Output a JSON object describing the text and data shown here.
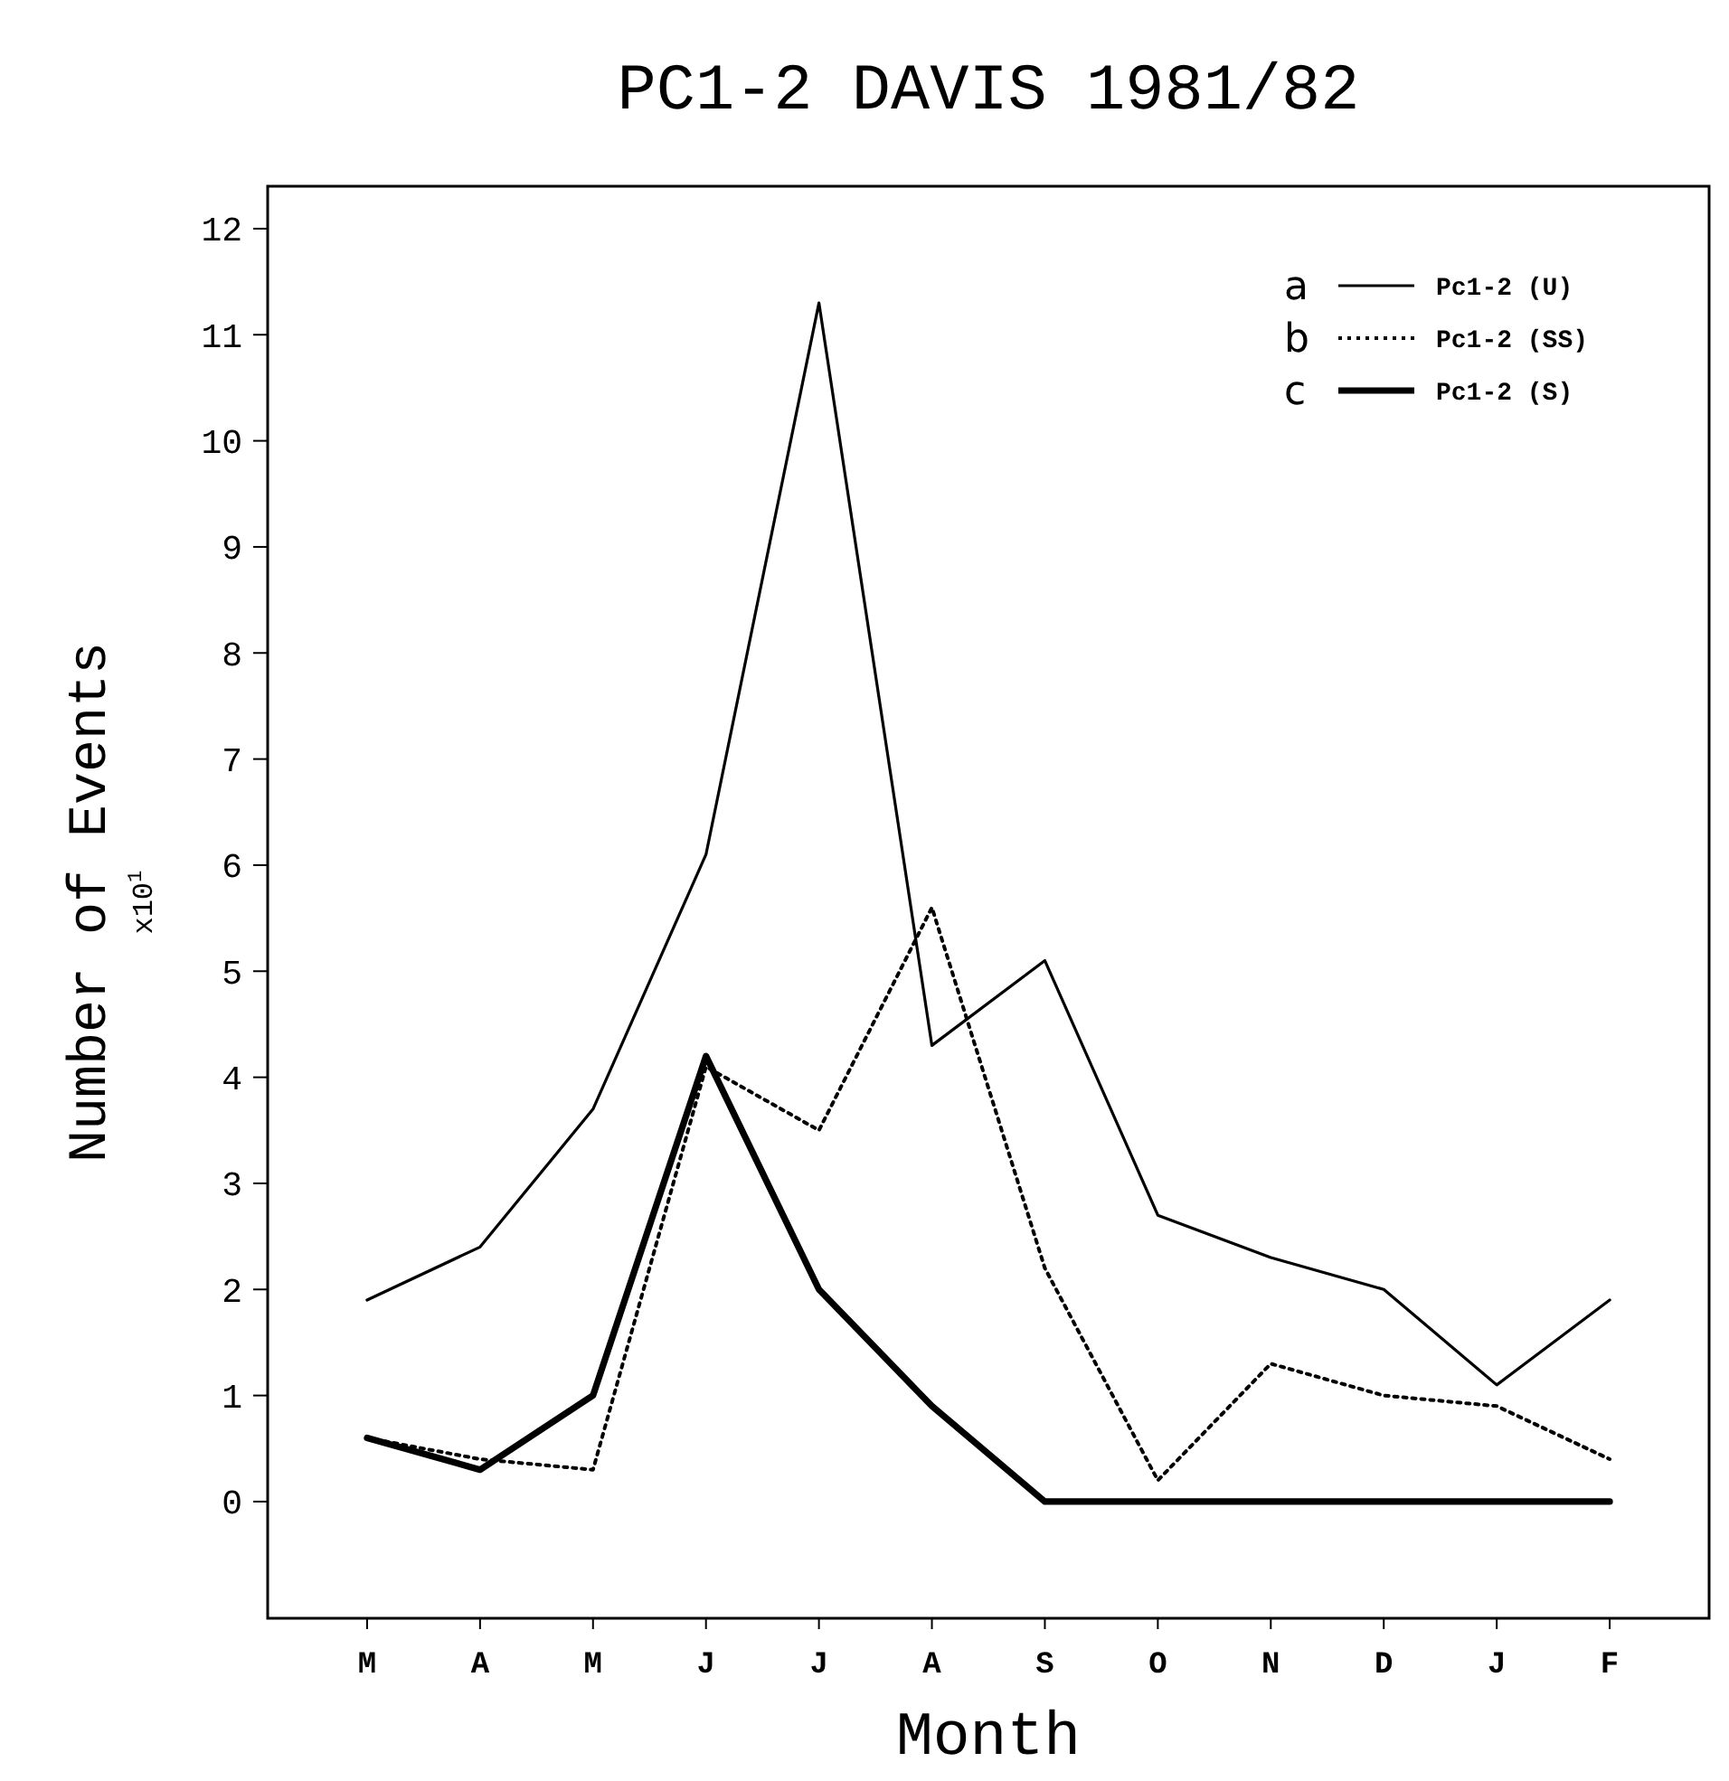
{
  "chart_data": {
    "type": "line",
    "title": "PC1-2 DAVIS 1981/82",
    "xlabel": "Month",
    "ylabel": "Number of Events\nx10$^{1}$",
    "categories": [
      "M",
      "A",
      "M",
      "J",
      "J",
      "A",
      "S",
      "O",
      "N",
      "D",
      "J",
      "F"
    ],
    "series": [
      {
        "name": "Pc1-2 (U)",
        "color": "#000000",
        "line_style": "solid",
        "values": [
          1.9,
          2.4,
          3.7,
          6.1,
          11.3,
          4.3,
          5.1,
          2.7,
          2.3,
          2.0,
          1.1,
          1.9
        ]
      },
      {
        "name": "Pc1-2 (SS)",
        "color": "#000000",
        "line_style": "dotted",
        "values": [
          0.6,
          0.4,
          0.3,
          4.1,
          3.5,
          5.6,
          2.2,
          0.2,
          1.3,
          1.0,
          0.9,
          0.4
        ]
      },
      {
        "name": "Pc1-2 (S)",
        "color": "#000000",
        "line_style": "solid",
        "values": [
          0.6,
          0.3,
          1.0,
          4.2,
          2.0,
          0.9,
          0,
          0,
          0,
          0,
          0,
          0
        ]
      }
    ],
    "annotations": [
      "a",
      "b",
      "c"
    ],
    "ylim": [
      -1.1,
      12.4
    ],
    "yticks": [
      0,
      1,
      2,
      3,
      4,
      5,
      6,
      7,
      8,
      9,
      10,
      11,
      12
    ],
    "grid": false,
    "legend": "top right",
    "marker": "none"
  }
}
